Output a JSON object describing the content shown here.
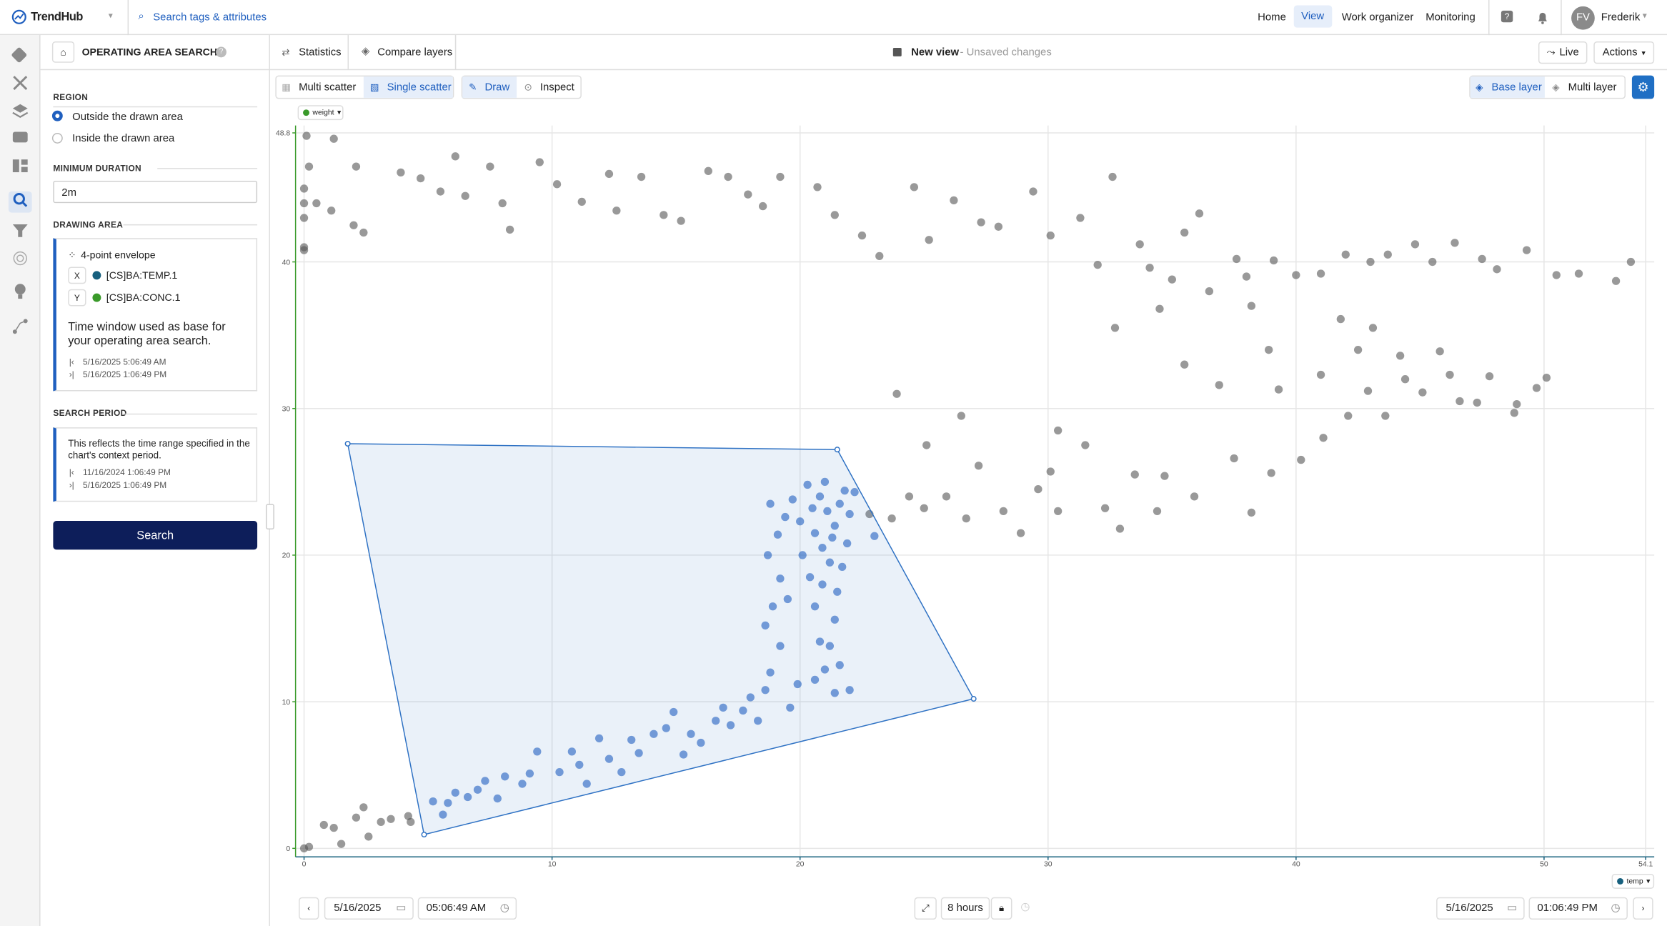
{
  "header": {
    "logo": "TrendHub",
    "search": "Search tags & attributes",
    "nav": [
      "Home",
      "View",
      "Work organizer",
      "Monitoring"
    ],
    "user_initials": "FV",
    "user_name": "Frederik"
  },
  "panel": {
    "title": "OPERATING AREA SEARCH",
    "region_label": "REGION",
    "region_options": [
      "Outside the drawn area",
      "Inside the drawn area"
    ],
    "min_duration_label": "MINIMUM DURATION",
    "min_duration_value": "2m",
    "drawing_area_label": "DRAWING AREA",
    "envelope": "4-point envelope",
    "x_label": "X",
    "x_tag": "[CS]BA:TEMP.1",
    "y_label": "Y",
    "y_tag": "[CS]BA:CONC.1",
    "note": "Time window used as base for your operating area search.",
    "window_start": "5/16/2025 5:06:49 AM",
    "window_end": "5/16/2025 1:06:49 PM",
    "search_period_label": "SEARCH PERIOD",
    "period_note": "This reflects the time range specified in the chart's context period.",
    "period_start": "11/16/2024 1:06:49 PM",
    "period_end": "5/16/2025 1:06:49 PM",
    "search_button": "Search"
  },
  "toolbar": {
    "tabs": [
      "Statistics",
      "Compare layers"
    ],
    "view_name": "New view",
    "view_status": "- Unsaved changes",
    "live": "Live",
    "actions": "Actions"
  },
  "chart_toolbar": {
    "modes": [
      "Multi scatter",
      "Single scatter"
    ],
    "tools": [
      "Draw",
      "Inspect"
    ],
    "layers": [
      "Base layer",
      "Multi layer"
    ]
  },
  "chart_data": {
    "type": "scatter",
    "y_chip": "weight",
    "x_chip": "temp",
    "xlim": [
      0,
      54.1
    ],
    "ylim": [
      0,
      48.8
    ],
    "xticks": [
      0,
      10,
      20,
      30,
      40,
      50,
      54.1
    ],
    "yticks": [
      0,
      10,
      20,
      30,
      40,
      48.8
    ],
    "grid": true,
    "envelope": {
      "color": "#2f72c4",
      "x": [
        1.76,
        21.5,
        27.0,
        4.84
      ],
      "y": [
        27.6,
        27.2,
        10.2,
        0.94
      ]
    },
    "series": [
      {
        "color": "#555555",
        "x": [
          0.1,
          1.2,
          0.2,
          2.1,
          0,
          0,
          0,
          0.5,
          1.1,
          2,
          2.4,
          0,
          0,
          3.9,
          4.7,
          5.5,
          6.1,
          6.5,
          7.5,
          8.0,
          8.3,
          9.5,
          10.2,
          11.2,
          12.6,
          12.3,
          13.6,
          14.5,
          15.2,
          16.3,
          17.1,
          17.9,
          18.5,
          19.2,
          20.7,
          21.4,
          22.5,
          23.2,
          24.6,
          25.2,
          26.2,
          27.3,
          28.0,
          29.4,
          30.1,
          31.3,
          32.0,
          32.6,
          33.7,
          34.1,
          35.0,
          35.5,
          36.1,
          36.5,
          37.6,
          38.0,
          39.1,
          40.0,
          41.0,
          42.0,
          43.0,
          43.7,
          44.8,
          45.5,
          46.4,
          47.5,
          48.1,
          49.3,
          50.5,
          51.4,
          52.9,
          53.5,
          32.7,
          34.5,
          35.5,
          36.9,
          38.2,
          38.9,
          39.3,
          41,
          41.8,
          42.5,
          43.1,
          44.2,
          45.1,
          46.2,
          47.3,
          48.8,
          49.7,
          50.1,
          26.5,
          25.1,
          23.7,
          24.4,
          25.0,
          25.9,
          26.7,
          27.2,
          28.2,
          28.9,
          29.6,
          30.1,
          30.4,
          30.4,
          31.5,
          32.3,
          32.9,
          33.5,
          34.4,
          34.7,
          35.9,
          37.5,
          38.2,
          39.0,
          40.2,
          41.1,
          42.1,
          42.9,
          43.6,
          44.4,
          45.8,
          46.6,
          47.8,
          48.9,
          22.8,
          23.9,
          0,
          0.2,
          0.8,
          1.2,
          1.5,
          2.1,
          2.4,
          2.6,
          3.1,
          3.5,
          4.2,
          4.3
        ],
        "values": [
          48.6,
          48.4,
          46.5,
          46.5,
          45,
          44,
          43,
          44,
          43.5,
          42.5,
          42,
          41,
          40.8,
          46.1,
          45.7,
          44.8,
          47.2,
          44.5,
          46.5,
          44.0,
          42.2,
          46.8,
          45.3,
          44.1,
          43.5,
          46.0,
          45.8,
          43.2,
          42.8,
          46.2,
          45.8,
          44.6,
          43.8,
          45.8,
          45.1,
          43.2,
          41.8,
          40.4,
          45.1,
          41.5,
          44.2,
          42.7,
          42.4,
          44.8,
          41.8,
          43.0,
          39.8,
          45.8,
          41.2,
          39.6,
          38.8,
          42.0,
          43.3,
          38.0,
          40.2,
          39.0,
          40.1,
          39.1,
          39.2,
          40.5,
          40.0,
          40.5,
          41.2,
          40.0,
          41.3,
          40.2,
          39.5,
          40.8,
          39.1,
          39.2,
          38.7,
          40.0,
          35.5,
          36.8,
          33,
          31.6,
          37,
          34,
          31.3,
          32.3,
          36.1,
          34,
          35.5,
          33.6,
          31.1,
          32.3,
          30.4,
          29.7,
          31.4,
          32.1,
          29.5,
          27.5,
          22.5,
          24.0,
          23.2,
          24.0,
          22.5,
          26.1,
          23.0,
          21.5,
          24.5,
          25.7,
          28.5,
          23,
          27.5,
          23.2,
          21.8,
          25.5,
          23.0,
          25.4,
          24.0,
          26.6,
          22.9,
          25.6,
          26.5,
          28.0,
          29.5,
          31.2,
          29.5,
          32.0,
          33.9,
          30.5,
          32.2,
          30.3,
          22.8,
          31,
          0,
          0.1,
          1.6,
          1.4,
          0.3,
          2.1,
          2.8,
          0.8,
          1.8,
          2.0,
          2.2,
          1.8
        ]
      },
      {
        "color": "#1f5fbf",
        "x": [
          5.2,
          5.6,
          5.8,
          6.1,
          6.6,
          7.0,
          7.3,
          7.8,
          8.1,
          8.8,
          9.1,
          9.4,
          10.3,
          10.8,
          11.1,
          11.4,
          11.9,
          12.3,
          12.8,
          13.2,
          13.5,
          14.1,
          14.6,
          14.9,
          15.3,
          15.6,
          16.0,
          16.6,
          16.9,
          17.2,
          17.7,
          18.0,
          18.3,
          18.6,
          18.8,
          19.2,
          19.6,
          18.6,
          18.9,
          19.2,
          19.5,
          18.7,
          19.1,
          19.4,
          18.8,
          19.7,
          20.0,
          20.1,
          20.4,
          20.6,
          20.8,
          21.0,
          20.6,
          21.2,
          21.4,
          21.5,
          21.7,
          21.9,
          22.0,
          22.2,
          20.3,
          20.8,
          21.1,
          21.4,
          20.6,
          20.9,
          21.3,
          21.6,
          21.8,
          20.5,
          21.0,
          21.2,
          20.9,
          21.6,
          22.0,
          19.9,
          23.0,
          21.4
        ],
        "values": [
          3.2,
          2.3,
          3.1,
          3.8,
          3.5,
          4.0,
          4.6,
          3.4,
          4.9,
          4.4,
          5.1,
          6.6,
          5.2,
          6.6,
          5.7,
          4.4,
          7.5,
          6.1,
          5.2,
          7.4,
          6.5,
          7.8,
          8.2,
          9.3,
          6.4,
          7.8,
          7.2,
          8.7,
          9.6,
          8.4,
          9.4,
          10.3,
          8.7,
          10.8,
          12,
          13.8,
          9.6,
          15.2,
          16.5,
          18.4,
          17.0,
          20.0,
          21.4,
          22.6,
          23.5,
          23.8,
          22.3,
          20.0,
          18.5,
          16.5,
          14.1,
          12.2,
          11.5,
          13.8,
          15.6,
          17.5,
          19.2,
          20.8,
          22.8,
          24.3,
          24.8,
          24.0,
          23.0,
          22.0,
          21.5,
          20.5,
          21.2,
          23.5,
          24.4,
          23.2,
          25.0,
          19.5,
          18.0,
          12.5,
          10.8,
          11.2,
          21.3,
          10.6
        ]
      }
    ]
  },
  "footer": {
    "start_date": "5/16/2025",
    "start_time": "05:06:49 AM",
    "duration": "8 hours",
    "end_date": "5/16/2025",
    "end_time": "01:06:49 PM"
  }
}
